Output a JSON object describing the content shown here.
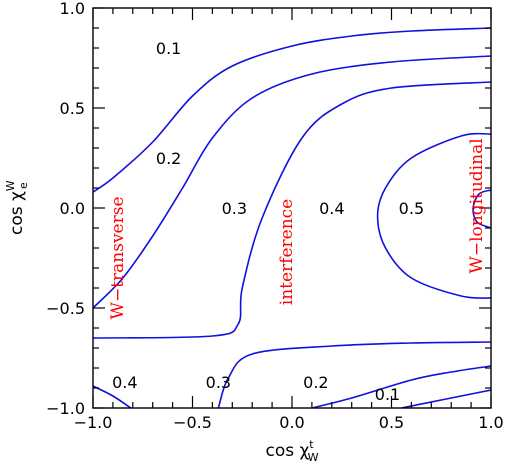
{
  "chart_data": {
    "type": "line",
    "xlabel": {
      "main": "cos χ",
      "sup": "t",
      "sub": "W"
    },
    "ylabel": {
      "main": "cos χ",
      "sup": "W",
      "sub": "e"
    },
    "xlim": [
      -1.0,
      1.0
    ],
    "ylim": [
      -1.0,
      1.0
    ],
    "grid": false,
    "x_major_ticks": [
      -1.0,
      -0.5,
      0.0,
      0.5,
      1.0
    ],
    "y_major_ticks": [
      -1.0,
      -0.5,
      0.0,
      0.5,
      1.0
    ],
    "x_tick_labels": [
      "−1.0",
      "−0.5",
      "0.0",
      "0.5",
      "1.0"
    ],
    "y_tick_labels": [
      "−1.0",
      "−0.5",
      "0.0",
      "0.5",
      "1.0"
    ],
    "series": [
      {
        "level": "0.1",
        "points": [
          [
            -1.0,
            0.08
          ],
          [
            -0.9,
            0.15
          ],
          [
            -0.7,
            0.33
          ],
          [
            -0.5,
            0.56
          ],
          [
            -0.3,
            0.71
          ],
          [
            0.0,
            0.81
          ],
          [
            0.3,
            0.86
          ],
          [
            0.6,
            0.885
          ],
          [
            1.0,
            0.9
          ]
        ]
      },
      {
        "level": "0.2",
        "points": [
          [
            -1.0,
            -0.5
          ],
          [
            -0.85,
            -0.35
          ],
          [
            -0.7,
            -0.14
          ],
          [
            -0.55,
            0.1
          ],
          [
            -0.4,
            0.35
          ],
          [
            -0.2,
            0.55
          ],
          [
            0.1,
            0.67
          ],
          [
            0.5,
            0.73
          ],
          [
            1.0,
            0.76
          ]
        ]
      },
      {
        "level": "0.3",
        "points": [
          [
            -1.0,
            -0.65
          ],
          [
            -0.4,
            -0.64
          ],
          [
            -0.27,
            -0.58
          ],
          [
            -0.25,
            -0.4
          ],
          [
            -0.15,
            -0.05
          ],
          [
            0.05,
            0.35
          ],
          [
            0.25,
            0.52
          ],
          [
            0.5,
            0.6
          ],
          [
            1.0,
            0.63
          ]
        ]
      },
      {
        "level": "0.3",
        "points": [
          [
            -0.37,
            -1.0
          ],
          [
            -0.32,
            -0.85
          ],
          [
            -0.2,
            -0.73
          ],
          [
            0.2,
            -0.69
          ],
          [
            0.6,
            -0.675
          ],
          [
            1.0,
            -0.67
          ]
        ]
      },
      {
        "level": "0.4",
        "points": [
          [
            1.0,
            0.37
          ],
          [
            0.85,
            0.36
          ],
          [
            0.6,
            0.25
          ],
          [
            0.47,
            0.1
          ],
          [
            0.43,
            -0.04
          ],
          [
            0.47,
            -0.2
          ],
          [
            0.6,
            -0.35
          ],
          [
            0.85,
            -0.44
          ],
          [
            1.0,
            -0.45
          ]
        ]
      },
      {
        "level": "0.5",
        "points": [
          [
            1.0,
            0.09
          ],
          [
            0.94,
            0.07
          ],
          [
            0.91,
            0.0
          ],
          [
            0.93,
            -0.07
          ],
          [
            1.0,
            -0.1
          ]
        ]
      },
      {
        "level": "0.4",
        "points": [
          [
            -1.0,
            -0.89
          ],
          [
            -0.9,
            -0.94
          ],
          [
            -0.81,
            -1.0
          ]
        ]
      },
      {
        "level": "0.2",
        "points": [
          [
            0.1,
            -1.0
          ],
          [
            0.3,
            -0.95
          ],
          [
            0.6,
            -0.86
          ],
          [
            0.8,
            -0.82
          ],
          [
            1.0,
            -0.79
          ]
        ]
      },
      {
        "level": "0.1",
        "points": [
          [
            0.55,
            -1.0
          ],
          [
            0.75,
            -0.96
          ],
          [
            0.9,
            -0.93
          ],
          [
            1.0,
            -0.91
          ]
        ]
      }
    ],
    "contour_labels": [
      {
        "text": "0.1",
        "x": -0.62,
        "y": 0.8
      },
      {
        "text": "0.2",
        "x": -0.62,
        "y": 0.25
      },
      {
        "text": "0.3",
        "x": -0.29,
        "y": 0.0
      },
      {
        "text": "0.4",
        "x": 0.2,
        "y": 0.0
      },
      {
        "text": "0.5",
        "x": 0.6,
        "y": 0.0
      },
      {
        "text": "0.4",
        "x": -0.84,
        "y": -0.87
      },
      {
        "text": "0.3",
        "x": -0.37,
        "y": -0.87
      },
      {
        "text": "0.2",
        "x": 0.12,
        "y": -0.87
      },
      {
        "text": "0.1",
        "x": 0.48,
        "y": -0.93
      }
    ],
    "annotations": [
      {
        "text": "W−transverse",
        "x": -0.85,
        "y": -0.25
      },
      {
        "text": "interference",
        "x": 0.0,
        "y": -0.22
      },
      {
        "text": "W−longitudinal",
        "x": 0.955,
        "y": 0.01
      }
    ]
  }
}
